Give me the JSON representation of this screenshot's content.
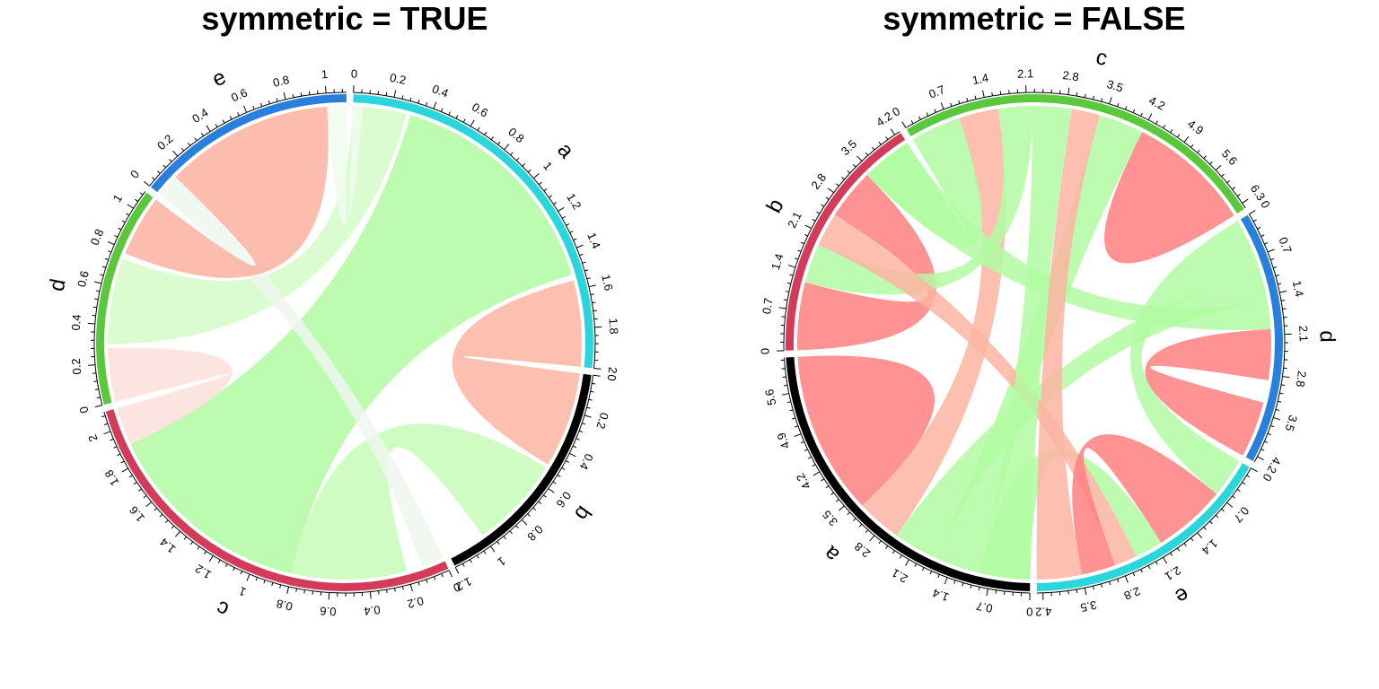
{
  "chart_data": [
    {
      "type": "chord",
      "title": "symmetric = TRUE",
      "sectors": [
        {
          "name": "a",
          "color": "#2ad6dc",
          "range": [
            0,
            2
          ],
          "ticks": [
            "0",
            "0.2",
            "0.4",
            "0.6",
            "0.8",
            "1",
            "1.2",
            "1.4",
            "1.6",
            "1.8",
            "2"
          ]
        },
        {
          "name": "b",
          "color": "#000000",
          "range": [
            0,
            1.2
          ],
          "ticks": [
            "0",
            "0.2",
            "0.4",
            "0.6",
            "0.8",
            "1",
            "1.2"
          ]
        },
        {
          "name": "c",
          "color": "#d23c5a",
          "range": [
            0,
            2.1
          ],
          "ticks": [
            "0",
            "0.2",
            "0.4",
            "0.6",
            "0.8",
            "1",
            "1.2",
            "1.4",
            "1.6",
            "1.8",
            "2"
          ]
        },
        {
          "name": "d",
          "color": "#5ac83c",
          "range": [
            0,
            1.1
          ],
          "ticks": [
            "0",
            "0.2",
            "0.4",
            "0.6",
            "0.8",
            "1"
          ]
        },
        {
          "name": "e",
          "color": "#2980dc",
          "range": [
            0,
            1.1
          ],
          "ticks": [
            "0",
            "0.2",
            "0.4",
            "0.6",
            "0.8",
            "1"
          ]
        }
      ],
      "links": [
        {
          "from": "a",
          "from_range": [
            1.55,
            2.0
          ],
          "to": "b",
          "to_range": [
            0.0,
            0.5
          ],
          "value": 0.45,
          "color": "#fbb4a2"
        },
        {
          "from": "a",
          "from_range": [
            0.3,
            1.52
          ],
          "to": "c",
          "to_range": [
            0.8,
            1.9
          ],
          "value": 1.1,
          "color": "#b2fba2"
        },
        {
          "from": "a",
          "from_range": [
            0.0,
            0.28
          ],
          "to": "d",
          "to_range": [
            0.3,
            0.75
          ],
          "value": 0.3,
          "color": "#d5fbc8"
        },
        {
          "from": "b",
          "from_range": [
            0.52,
            1.0
          ],
          "to": "c",
          "to_range": [
            0.2,
            0.8
          ],
          "value": 0.45,
          "color": "#c6fbb8"
        },
        {
          "from": "c",
          "from_range": [
            1.9,
            2.1
          ],
          "to": "d",
          "to_range": [
            0.0,
            0.28
          ],
          "value": 0.1,
          "color": "#fbe0da"
        },
        {
          "from": "c",
          "from_range": [
            0.0,
            0.12
          ],
          "to": "e",
          "to_range": [
            0.0,
            0.12
          ],
          "value": 0.05,
          "color": "#eef6ee"
        },
        {
          "from": "d",
          "from_range": [
            0.78,
            1.1
          ],
          "to": "e",
          "to_range": [
            0.12,
            1.0
          ],
          "value": 0.5,
          "color": "#fbb0a0"
        },
        {
          "from": "e",
          "from_range": [
            1.0,
            1.1
          ],
          "to": "a",
          "to_range": [
            0.0,
            0.05
          ],
          "value": 0.05,
          "color": "#f0fbee"
        }
      ]
    },
    {
      "type": "chord",
      "title": "symmetric = FALSE",
      "sectors": [
        {
          "name": "a",
          "color": "#000000",
          "range": [
            0,
            6.2
          ],
          "ticks": [
            "0",
            "0.7",
            "1.4",
            "2.1",
            "2.8",
            "3.5",
            "4.2",
            "4.9",
            "5.6"
          ]
        },
        {
          "name": "b",
          "color": "#d23c5a",
          "range": [
            0,
            4.3
          ],
          "ticks": [
            "0",
            "0.7",
            "1.4",
            "2.1",
            "2.8",
            "3.5",
            "4.2"
          ]
        },
        {
          "name": "c",
          "color": "#5ac83c",
          "range": [
            0,
            6.4
          ],
          "ticks": [
            "0",
            "0.7",
            "1.4",
            "2.1",
            "2.8",
            "3.5",
            "4.2",
            "4.9",
            "5.6",
            "6.3"
          ]
        },
        {
          "name": "d",
          "color": "#2980dc",
          "range": [
            0,
            4.3
          ],
          "ticks": [
            "0",
            "0.7",
            "1.4",
            "2.1",
            "2.8",
            "3.5",
            "4.2"
          ]
        },
        {
          "name": "e",
          "color": "#2ad6dc",
          "range": [
            0,
            4.3
          ],
          "ticks": [
            "0",
            "0.7",
            "1.4",
            "2.1",
            "2.8",
            "3.5",
            "4.2"
          ]
        }
      ],
      "links": [
        {
          "from": "a",
          "from_range": [
            0.0,
            0.9
          ],
          "to": "e",
          "to_range": [
            2.0,
            2.5
          ],
          "value": 0.9,
          "color": "#b2fba2"
        },
        {
          "from": "a",
          "from_range": [
            0.9,
            1.7
          ],
          "to": "c",
          "to_range": [
            3.4,
            4.2
          ],
          "value": 0.8,
          "color": "#b2fba2"
        },
        {
          "from": "a",
          "from_range": [
            1.7,
            2.5
          ],
          "to": "d",
          "to_range": [
            0.9,
            1.5
          ],
          "value": 0.8,
          "color": "#b2fba2"
        },
        {
          "from": "a",
          "from_range": [
            2.5,
            3.3
          ],
          "to": "c",
          "to_range": [
            0.9,
            1.6
          ],
          "value": 0.8,
          "color": "#fbb4a2"
        },
        {
          "from": "a",
          "from_range": [
            3.3,
            4.6
          ],
          "to": "a",
          "to_range": [
            4.6,
            6.2
          ],
          "value": 1.3,
          "color": "#ff8080"
        },
        {
          "from": "b",
          "from_range": [
            0.0,
            1.2
          ],
          "to": "b",
          "to_range": [
            2.5,
            3.4
          ],
          "value": 1.2,
          "color": "#ff8080"
        },
        {
          "from": "b",
          "from_range": [
            1.2,
            1.9
          ],
          "to": "c",
          "to_range": [
            1.6,
            2.2
          ],
          "value": 0.7,
          "color": "#b2fba2"
        },
        {
          "from": "b",
          "from_range": [
            1.9,
            2.5
          ],
          "to": "e",
          "to_range": [
            2.5,
            2.9
          ],
          "value": 0.6,
          "color": "#fbb4a2"
        },
        {
          "from": "b",
          "from_range": [
            3.4,
            4.3
          ],
          "to": "d",
          "to_range": [
            1.5,
            2.0
          ],
          "value": 0.9,
          "color": "#b2fba2"
        },
        {
          "from": "c",
          "from_range": [
            0.0,
            0.9
          ],
          "to": "b",
          "to_range": [
            3.4,
            4.3
          ],
          "value": 0.9,
          "color": "#b2fba2"
        },
        {
          "from": "c",
          "from_range": [
            2.2,
            2.9
          ],
          "to": "a",
          "to_range": [
            0.0,
            0.9
          ],
          "value": 0.7,
          "color": "#b2fba2"
        },
        {
          "from": "c",
          "from_range": [
            2.9,
            3.4
          ],
          "to": "e",
          "to_range": [
            3.5,
            4.3
          ],
          "value": 0.5,
          "color": "#fbb4a2"
        },
        {
          "from": "c",
          "from_range": [
            4.2,
            5.1
          ],
          "to": "c",
          "to_range": [
            5.1,
            6.4
          ],
          "value": 1.0,
          "color": "#ff8080"
        },
        {
          "from": "d",
          "from_range": [
            0.0,
            0.9
          ],
          "to": "e",
          "to_range": [
            0.0,
            0.7
          ],
          "value": 0.9,
          "color": "#b2fba2"
        },
        {
          "from": "d",
          "from_range": [
            2.0,
            2.9
          ],
          "to": "d",
          "to_range": [
            3.3,
            4.3
          ],
          "value": 0.9,
          "color": "#ff8080"
        },
        {
          "from": "e",
          "from_range": [
            0.7,
            2.0
          ],
          "to": "e",
          "to_range": [
            2.9,
            3.5
          ],
          "value": 1.0,
          "color": "#ff8080"
        }
      ]
    }
  ]
}
